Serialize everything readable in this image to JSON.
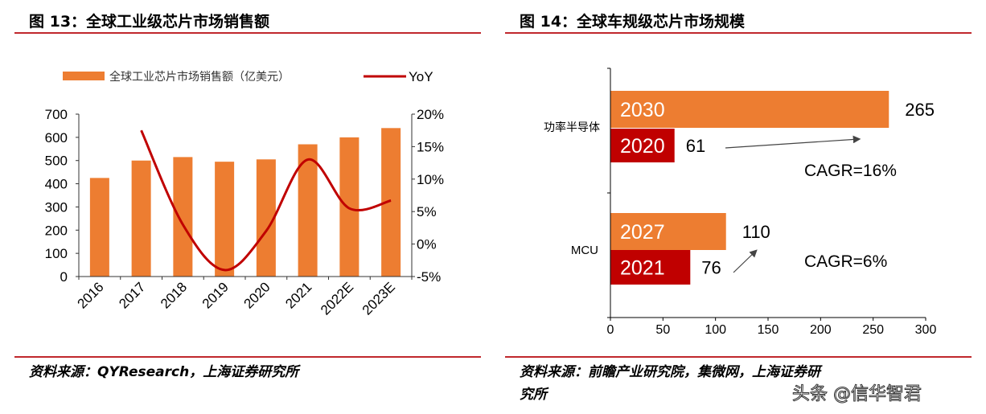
{
  "left": {
    "title": "图 13：全球工业级芯片市场销售额",
    "source": "资料来源：QYResearch，上海证券研究所"
  },
  "right": {
    "title": "图 14：全球车规级芯片市场规模",
    "source_line1": "资料来源：前瞻产业研究院，集微网，上海证券研",
    "source_line2": "究所"
  },
  "watermark": "头条 @信华智君",
  "colors": {
    "bar": "#ED7D31",
    "line": "#C00000",
    "rule": "#C0282D"
  },
  "chart_data": [
    {
      "type": "bar+line",
      "categories": [
        "2016",
        "2017",
        "2018",
        "2019",
        "2020",
        "2021",
        "2022E",
        "2023E"
      ],
      "series": [
        {
          "name": "全球工业芯片市场销售额（亿美元）",
          "type": "bar",
          "axis": "left",
          "values": [
            425,
            500,
            515,
            495,
            505,
            570,
            600,
            640
          ]
        },
        {
          "name": "YoY",
          "type": "line",
          "axis": "right",
          "values": [
            null,
            17.5,
            3,
            -4,
            2,
            13,
            5.5,
            6.7
          ]
        }
      ],
      "yleft": {
        "range": [
          0,
          700
        ],
        "ticks": [
          "0",
          "100",
          "200",
          "300",
          "400",
          "500",
          "600",
          "700"
        ]
      },
      "yright": {
        "range": [
          -5,
          20
        ],
        "ticks": [
          "-5%",
          "0%",
          "5%",
          "10%",
          "15%",
          "20%"
        ]
      },
      "legend": "top",
      "grid": false
    },
    {
      "type": "bar",
      "orientation": "horizontal",
      "categories": [
        "功率半导体",
        "MCU"
      ],
      "bars": [
        {
          "category": "功率半导体",
          "label": "2030",
          "value": 265,
          "value_label": "265",
          "color": "#ED7D31"
        },
        {
          "category": "功率半导体",
          "label": "2020",
          "value": 61,
          "value_label": "61",
          "color": "#C00000"
        },
        {
          "category": "MCU",
          "label": "2027",
          "value": 110,
          "value_label": "110",
          "color": "#ED7D31"
        },
        {
          "category": "MCU",
          "label": "2021",
          "value": 76,
          "value_label": "76",
          "color": "#C00000"
        }
      ],
      "annotations": [
        "CAGR=16%",
        "CAGR=6%"
      ],
      "xaxis": {
        "range": [
          0,
          300
        ],
        "ticks": [
          "0",
          "50",
          "100",
          "150",
          "200",
          "250",
          "300"
        ]
      },
      "grid": false
    }
  ]
}
